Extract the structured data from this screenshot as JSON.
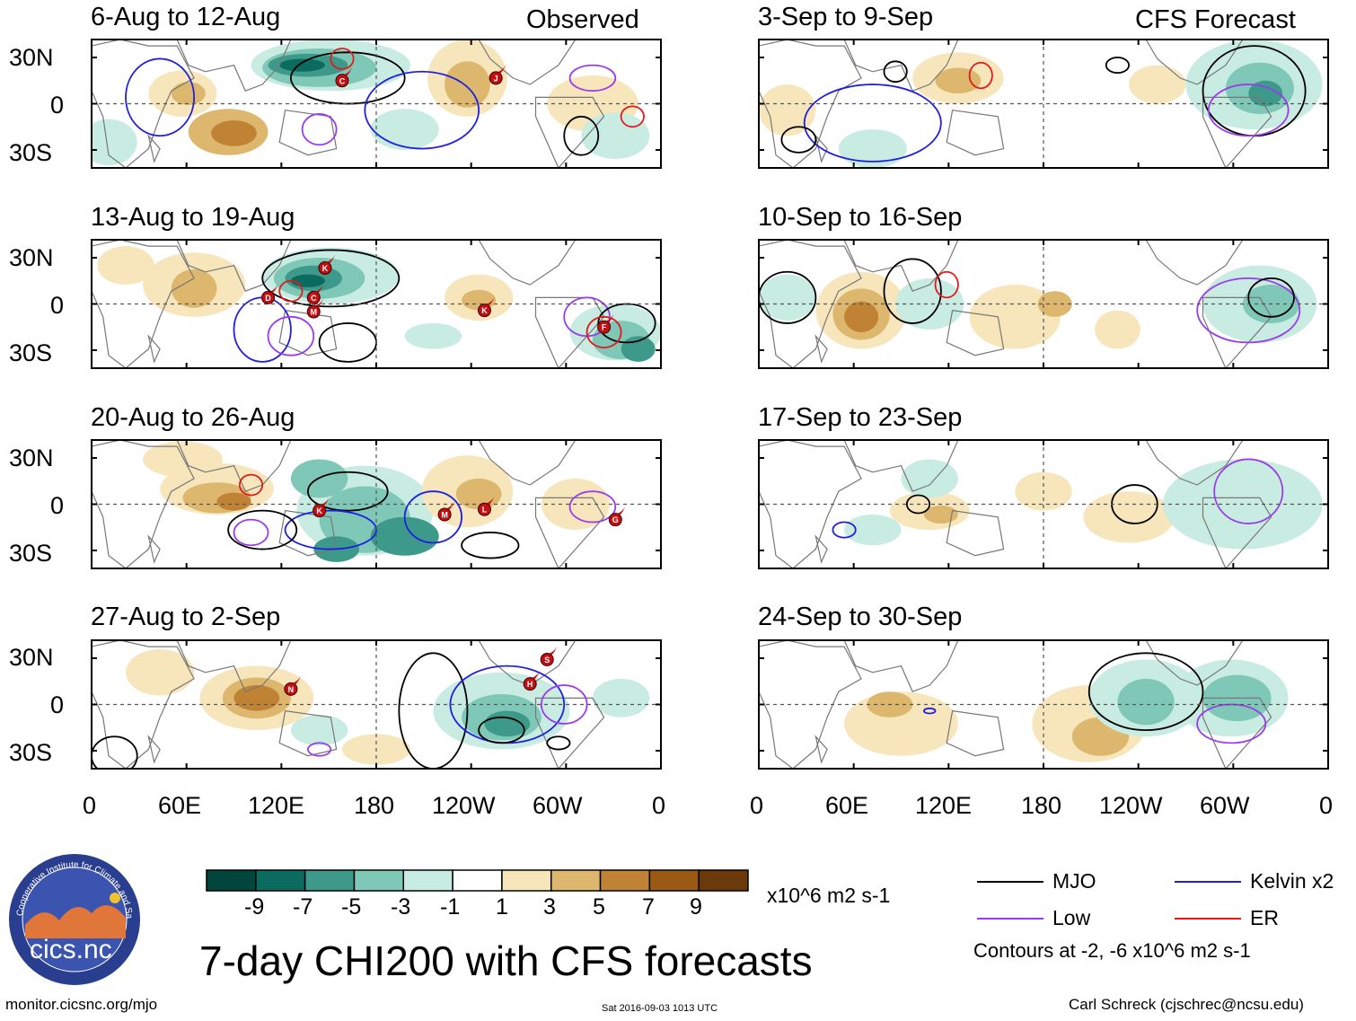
{
  "title": "7-day CHI200 with CFS forecasts",
  "observed_label": "Observed",
  "forecast_label": "CFS Forecast",
  "maps": {
    "observed": [
      {
        "period": "6-Aug to 12-Aug"
      },
      {
        "period": "13-Aug to 19-Aug"
      },
      {
        "period": "20-Aug to 26-Aug"
      },
      {
        "period": "27-Aug to 2-Sep"
      }
    ],
    "forecast": [
      {
        "period": "3-Sep to 9-Sep"
      },
      {
        "period": "10-Sep to 16-Sep"
      },
      {
        "period": "17-Sep to 23-Sep"
      },
      {
        "period": "24-Sep to 30-Sep"
      }
    ]
  },
  "storm_markers": [
    [
      "C",
      "J"
    ],
    [
      "D",
      "K",
      "C",
      "M",
      "K",
      "F"
    ],
    [
      "K",
      "M",
      "L",
      "G"
    ],
    [
      "N",
      "H",
      "S"
    ]
  ],
  "lat_labels": [
    "30N",
    "0",
    "30S"
  ],
  "lon_labels": [
    "0",
    "60E",
    "120E",
    "180",
    "120W",
    "60W",
    "0"
  ],
  "colorbar": {
    "labels": [
      "-9",
      "-7",
      "-5",
      "-3",
      "-1",
      "1",
      "3",
      "5",
      "7",
      "9"
    ],
    "colors": [
      "#01463d",
      "#0b6b5e",
      "#3d9a8a",
      "#7fc8b8",
      "#c8ebe2",
      "#ffffff",
      "#f7e6bb",
      "#ddb76d",
      "#c08234",
      "#9a5a14",
      "#6b3a0a"
    ],
    "units": "x10^6 m2 s-1"
  },
  "legend": {
    "items": [
      {
        "label": "MJO",
        "color": "#000000"
      },
      {
        "label": "Kelvin x2",
        "color": "#1f1fe0"
      },
      {
        "label": "Low",
        "color": "#9a3ce8"
      },
      {
        "label": "ER",
        "color": "#e01b1b"
      }
    ],
    "contours_note": "Contours at -2, -6 x10^6 m2 s-1"
  },
  "logo_text": "cics.nc",
  "logo_ring_text": "Cooperative Institute for Climate and Satellites",
  "footer": {
    "url": "monitor.cicsnc.org/mjo",
    "timestamp": "Sat 2016-09-03 1013 UTC",
    "author": "Carl Schreck (cjschrec@ncsu.edu)"
  }
}
